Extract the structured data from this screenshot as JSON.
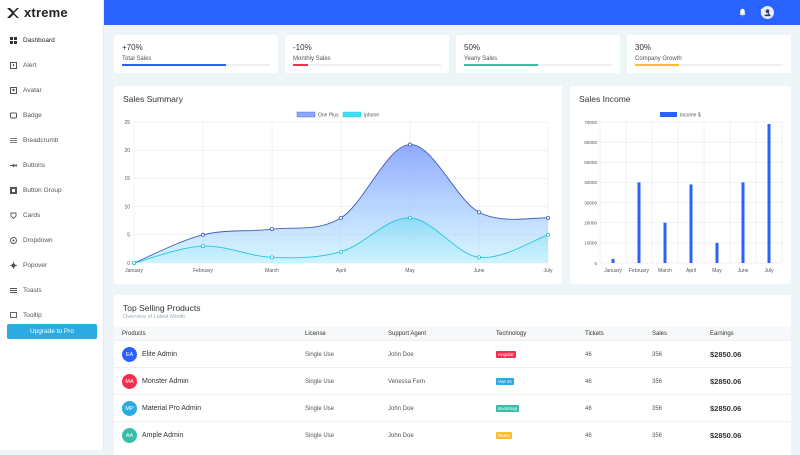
{
  "brand": {
    "name": "xtreme"
  },
  "sidebar": {
    "items": [
      {
        "label": "Dashboard",
        "icon": "grid-icon",
        "active": true
      },
      {
        "label": "Alert",
        "icon": "alert-box-icon"
      },
      {
        "label": "Avatar",
        "icon": "avatar-icon"
      },
      {
        "label": "Badge",
        "icon": "badge-icon"
      },
      {
        "label": "Breadcrumb",
        "icon": "breadcrumb-icon"
      },
      {
        "label": "Buttons",
        "icon": "buttons-icon"
      },
      {
        "label": "Button Group",
        "icon": "button-group-icon"
      },
      {
        "label": "Cards",
        "icon": "cards-icon"
      },
      {
        "label": "Dropdown",
        "icon": "dropdown-icon"
      },
      {
        "label": "Popover",
        "icon": "popover-icon"
      },
      {
        "label": "Toasts",
        "icon": "toasts-icon"
      },
      {
        "label": "Tooltip",
        "icon": "tooltip-icon"
      }
    ],
    "upgrade_label": "Upgrade to Pro"
  },
  "topbar": {
    "icons": [
      "bell-icon",
      "message-icon",
      "user-avatar-icon"
    ]
  },
  "stats": [
    {
      "value": "+70%",
      "label": "Total Sales",
      "progress": 0.7,
      "color": "#2962ff"
    },
    {
      "value": "-10%",
      "label": "Monthly Sales",
      "progress": 0.1,
      "color": "#f62d51"
    },
    {
      "value": "50%",
      "label": "Yearly Sales",
      "progress": 0.5,
      "color": "#36bea6"
    },
    {
      "value": "30%",
      "label": "Company Growth",
      "progress": 0.3,
      "color": "#ffbc34"
    }
  ],
  "sales_summary": {
    "title": "Sales Summary"
  },
  "sales_income": {
    "title": "Sales Income"
  },
  "chart_data": [
    {
      "type": "area",
      "title": "Sales Summary",
      "x": [
        "January",
        "February",
        "March",
        "April",
        "May",
        "June",
        "July"
      ],
      "series": [
        {
          "name": "One Plus",
          "values": [
            0,
            5,
            6,
            8,
            21,
            9,
            8
          ],
          "color": "#2962ff"
        },
        {
          "name": "iphone",
          "values": [
            0,
            3,
            1,
            2,
            8,
            1,
            5
          ],
          "color": "#4fc3f7"
        }
      ],
      "ylim": [
        0,
        25
      ],
      "yticks": [
        0,
        5,
        10,
        15,
        20,
        25
      ],
      "legend": "top-center"
    },
    {
      "type": "bar",
      "title": "Sales Income",
      "categories": [
        "January",
        "February",
        "March",
        "April",
        "May",
        "June",
        "July"
      ],
      "series": [
        {
          "name": "Income $",
          "values": [
            2000,
            40000,
            20000,
            39000,
            10000,
            40000,
            69000
          ],
          "color": "#2962ff"
        }
      ],
      "ylim": [
        0,
        70000
      ],
      "yticks": [
        0,
        10000,
        20000,
        30000,
        40000,
        50000,
        60000,
        70000
      ],
      "legend": "top-center"
    }
  ],
  "table": {
    "title": "Top Selling Products",
    "subtitle": "Overview of Latest Month",
    "headers": [
      "Products",
      "License",
      "Support Agent",
      "Technology",
      "Tickets",
      "Sales",
      "Earnings"
    ],
    "rows": [
      {
        "initials": "EA",
        "avatar_color": "#2962ff",
        "product": "Elite Admin",
        "license": "Single Use",
        "agent": "John Doe",
        "tech": "Angular",
        "tech_color": "#f62d51",
        "tickets": "46",
        "sales": "356",
        "earnings": "$2850.06"
      },
      {
        "initials": "MA",
        "avatar_color": "#f62d51",
        "product": "Monster Admin",
        "license": "Single Use",
        "agent": "Venessa Fern",
        "tech": "Vue Js",
        "tech_color": "#2cabe3",
        "tickets": "46",
        "sales": "356",
        "earnings": "$2850.06"
      },
      {
        "initials": "MP",
        "avatar_color": "#2cabe3",
        "product": "Material Pro Admin",
        "license": "Single Use",
        "agent": "John Doe",
        "tech": "Bootstrap",
        "tech_color": "#36bea6",
        "tickets": "46",
        "sales": "356",
        "earnings": "$2850.06"
      },
      {
        "initials": "AA",
        "avatar_color": "#36bea6",
        "product": "Ample Admin",
        "license": "Single Use",
        "agent": "John Doe",
        "tech": "React",
        "tech_color": "#ffbc34",
        "tickets": "46",
        "sales": "356",
        "earnings": "$2850.06"
      }
    ]
  }
}
